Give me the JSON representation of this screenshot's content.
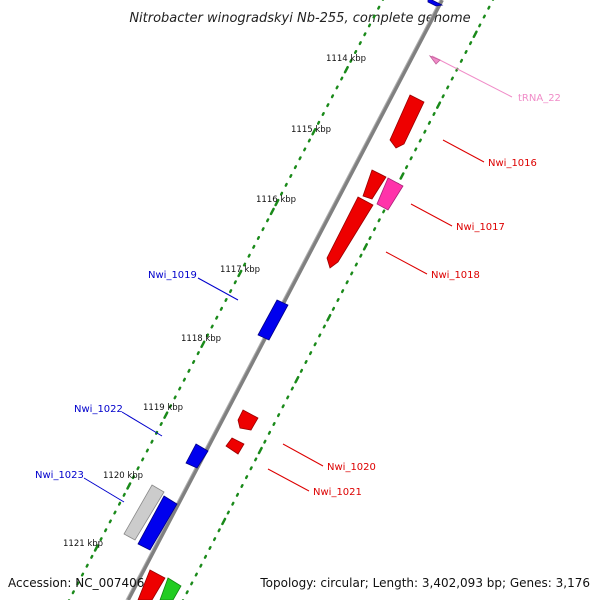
{
  "title": "Nitrobacter winogradskyi Nb-255, complete genome",
  "footer": {
    "accession": "Accession: NC_007406",
    "topology": "Topology: circular; Length: 3,402,093 bp; Genes: 3,176"
  },
  "colors": {
    "backbone": "#808080",
    "tick": "#1a8a1a",
    "forward_gene": "#0000ee",
    "reverse_gene": "#ee0000",
    "trna": "#f08cc8",
    "pseudo": "#cccccc",
    "misc_pink": "#ff33aa",
    "green_feature": "#22cc22"
  },
  "kbp_labels": [
    "1114 kbp",
    "1115 kbp",
    "1116 kbp",
    "1117 kbp",
    "1118 kbp",
    "1119 kbp",
    "1120 kbp",
    "1121 kbp"
  ],
  "gene_labels": {
    "trna_22": "tRNA_22",
    "nwi_1016": "Nwi_1016",
    "nwi_1017": "Nwi_1017",
    "nwi_1018": "Nwi_1018",
    "nwi_1019": "Nwi_1019",
    "nwi_1020": "Nwi_1020",
    "nwi_1021": "Nwi_1021",
    "nwi_1022": "Nwi_1022",
    "nwi_1023": "Nwi_1023"
  }
}
